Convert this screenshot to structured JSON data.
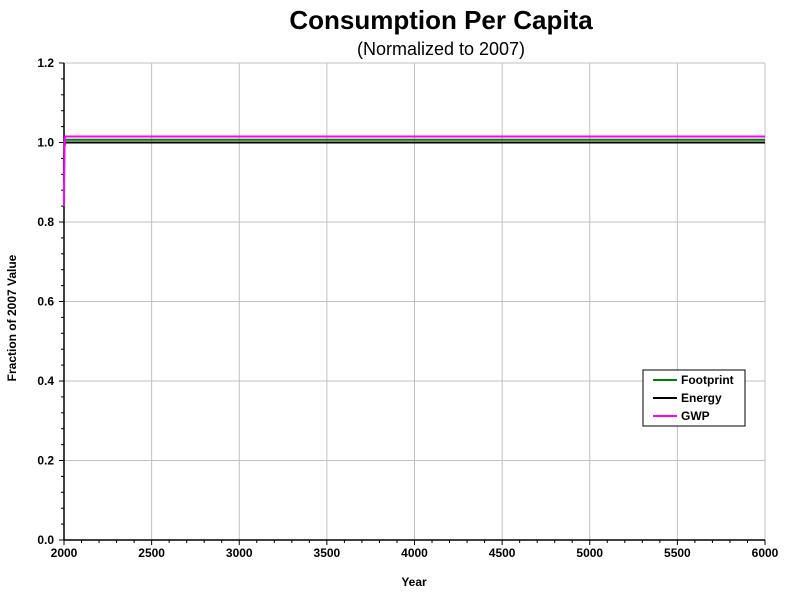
{
  "chart_data": {
    "type": "line",
    "title": "Consumption Per Capita",
    "subtitle": "(Normalized to 2007)",
    "xlabel": "Year",
    "ylabel": "Fraction of 2007 Value",
    "xlim": [
      2000,
      6000
    ],
    "ylim": [
      0,
      1.2
    ],
    "x_ticks": [
      "2000",
      "2500",
      "3000",
      "3500",
      "4000",
      "4500",
      "5000",
      "5500",
      "6000"
    ],
    "y_ticks": [
      "0.0",
      "0.2",
      "0.4",
      "0.6",
      "0.8",
      "1.0",
      "1.2"
    ],
    "grid": true,
    "legend_position": "right",
    "series": [
      {
        "name": "Footprint",
        "color": "#008000",
        "x": [
          2000,
          2001,
          2003,
          2005,
          2007,
          6000
        ],
        "y": [
          0.92,
          0.97,
          1.0,
          1.005,
          1.007,
          1.007
        ]
      },
      {
        "name": "Energy",
        "color": "#000000",
        "x": [
          2000,
          2001,
          2003,
          2005,
          2007,
          6000
        ],
        "y": [
          0.9,
          0.96,
          0.99,
          0.998,
          1.0,
          1.0
        ]
      },
      {
        "name": "GWP",
        "color": "#ff00ff",
        "x": [
          2000,
          2001,
          2003,
          2005,
          2007,
          6000
        ],
        "y": [
          0.84,
          0.93,
          0.99,
          1.01,
          1.015,
          1.015
        ]
      }
    ]
  }
}
